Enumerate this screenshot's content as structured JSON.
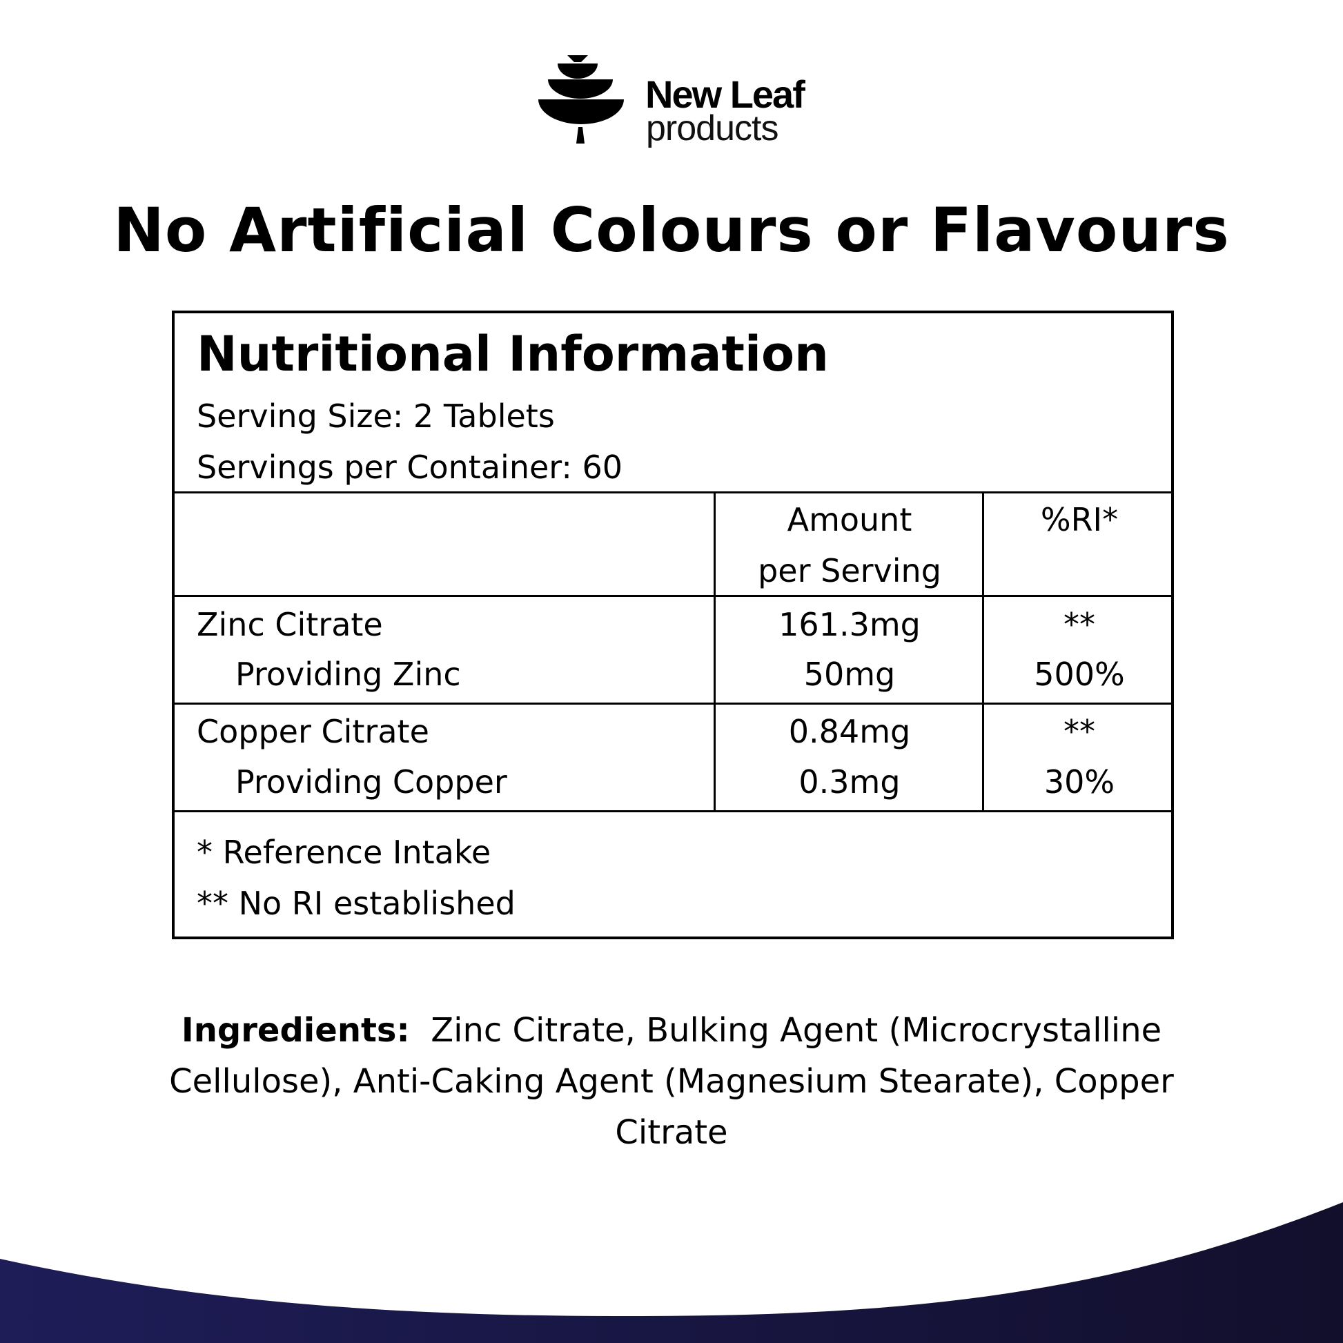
{
  "brand": {
    "name": "New Leaf",
    "sub": "products"
  },
  "title": "No Artificial Colours or Flavours",
  "nutrition": {
    "heading": "Nutritional Information",
    "serving_size": "Serving Size: 2 Tablets",
    "servings_per_container": "Servings per Container: 60",
    "columns": [
      "",
      "Amount",
      "per Serving",
      "%RI*"
    ],
    "rows": [
      {
        "name": "Zinc Citrate",
        "amount": "161.3mg",
        "ri": "**",
        "sub_name": "Providing Zinc",
        "sub_amount": "50mg",
        "sub_ri": "500%"
      },
      {
        "name": "Copper Citrate",
        "amount": "0.84mg",
        "ri": "**",
        "sub_name": "Providing Copper",
        "sub_amount": "0.3mg",
        "sub_ri": "30%"
      }
    ],
    "footnotes": [
      "* Reference Intake",
      "** No RI established"
    ]
  },
  "ingredients": {
    "label": "Ingredients:",
    "text": "Zinc Citrate, Bulking Agent (Microcrystalline Cellulose), Anti-Caking Agent (Magnesium Stearate), Copper Citrate"
  },
  "colors": {
    "wave_left": "#1e1d58",
    "wave_right": "#120f2c"
  }
}
